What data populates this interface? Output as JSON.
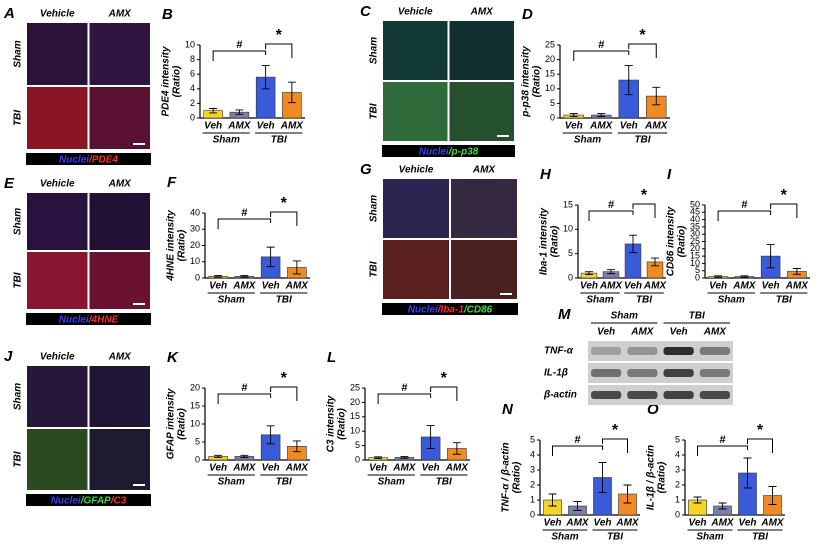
{
  "chart_data": [
    {
      "type": "bar",
      "panel": "B",
      "ylabel": "PDE4 intensity",
      "ylabel_unit": "(Ratio)",
      "categories": [
        "Veh",
        "AMX",
        "Veh",
        "AMX"
      ],
      "groups": [
        "Sham",
        "TBI"
      ],
      "values": [
        1,
        0.8,
        5.6,
        3.5
      ],
      "errors": [
        0.3,
        0.3,
        1.6,
        1.4
      ],
      "colors": [
        "#f5d327",
        "#7b7fa8",
        "#3a5bd9",
        "#f08a24"
      ],
      "ylim": [
        0,
        10
      ],
      "yticks": [
        0,
        2,
        4,
        6,
        8,
        10
      ],
      "annotations": [
        "#",
        "*"
      ]
    },
    {
      "type": "bar",
      "panel": "D",
      "ylabel": "p-p38 intensity",
      "ylabel_unit": "(Ratio)",
      "categories": [
        "Veh",
        "AMX",
        "Veh",
        "AMX"
      ],
      "groups": [
        "Sham",
        "TBI"
      ],
      "values": [
        1,
        1,
        13,
        7.5
      ],
      "errors": [
        0.5,
        0.5,
        5,
        3
      ],
      "colors": [
        "#f5d327",
        "#7b7fa8",
        "#3a5bd9",
        "#f08a24"
      ],
      "ylim": [
        0,
        25
      ],
      "yticks": [
        0,
        5,
        10,
        15,
        20,
        25
      ],
      "annotations": [
        "#",
        "*"
      ]
    },
    {
      "type": "bar",
      "panel": "F",
      "ylabel": "4HNE intensity",
      "ylabel_unit": "(Ratio)",
      "categories": [
        "Veh",
        "AMX",
        "Veh",
        "AMX"
      ],
      "groups": [
        "Sham",
        "TBI"
      ],
      "values": [
        1,
        1,
        13,
        6.5
      ],
      "errors": [
        0.5,
        0.5,
        6,
        4
      ],
      "colors": [
        "#f5d327",
        "#7b7fa8",
        "#3a5bd9",
        "#f08a24"
      ],
      "ylim": [
        0,
        40
      ],
      "yticks": [
        0,
        10,
        20,
        30,
        40
      ],
      "annotations": [
        "#",
        "*"
      ]
    },
    {
      "type": "bar",
      "panel": "H",
      "ylabel": "Iba-1 intensity",
      "ylabel_unit": "(Ratio)",
      "categories": [
        "Veh",
        "AMX",
        "Veh",
        "AMX"
      ],
      "groups": [
        "Sham",
        "TBI"
      ],
      "values": [
        1,
        1.3,
        7,
        3.3
      ],
      "errors": [
        0.3,
        0.4,
        1.8,
        0.8
      ],
      "colors": [
        "#f5d327",
        "#7b7fa8",
        "#3a5bd9",
        "#f08a24"
      ],
      "ylim": [
        0,
        15
      ],
      "yticks": [
        0,
        5,
        10,
        15
      ],
      "annotations": [
        "#",
        "*"
      ]
    },
    {
      "type": "bar",
      "panel": "I",
      "ylabel": "CD86 intensity",
      "ylabel_unit": "(Ratio)",
      "categories": [
        "Veh",
        "AMX",
        "Veh",
        "AMX"
      ],
      "groups": [
        "Sham",
        "TBI"
      ],
      "values": [
        1,
        1,
        15,
        4.5
      ],
      "errors": [
        0.5,
        0.5,
        8,
        2
      ],
      "colors": [
        "#f5d327",
        "#7b7fa8",
        "#3a5bd9",
        "#f08a24"
      ],
      "ylim": [
        0,
        50
      ],
      "yticks": [
        0,
        5,
        10,
        15,
        20,
        25,
        30,
        35,
        40,
        45,
        50
      ],
      "annotations": [
        "#",
        "*"
      ]
    },
    {
      "type": "bar",
      "panel": "K",
      "ylabel": "GFAP intensity",
      "ylabel_unit": "(Ratio)",
      "categories": [
        "Veh",
        "AMX",
        "Veh",
        "AMX"
      ],
      "groups": [
        "Sham",
        "TBI"
      ],
      "values": [
        1,
        1,
        7,
        3.8
      ],
      "errors": [
        0.3,
        0.3,
        2.5,
        1.5
      ],
      "colors": [
        "#f5d327",
        "#7b7fa8",
        "#3a5bd9",
        "#f08a24"
      ],
      "ylim": [
        0,
        20
      ],
      "yticks": [
        0,
        5,
        10,
        15,
        20
      ],
      "annotations": [
        "#",
        "*"
      ]
    },
    {
      "type": "bar",
      "panel": "L",
      "ylabel": "C3 intensity",
      "ylabel_unit": "(Ratio)",
      "categories": [
        "Veh",
        "AMX",
        "Veh",
        "AMX"
      ],
      "groups": [
        "Sham",
        "TBI"
      ],
      "values": [
        0.8,
        0.9,
        8,
        4
      ],
      "errors": [
        0.3,
        0.3,
        4,
        2
      ],
      "colors": [
        "#f5d327",
        "#7b7fa8",
        "#3a5bd9",
        "#f08a24"
      ],
      "ylim": [
        0,
        25
      ],
      "yticks": [
        0,
        5,
        10,
        15,
        20,
        25
      ],
      "annotations": [
        "#",
        "*"
      ]
    },
    {
      "type": "bar",
      "panel": "N",
      "ylabel": "TNF-α / β-actin",
      "ylabel_unit": "(Ratio)",
      "categories": [
        "Veh",
        "AMX",
        "Veh",
        "AMX"
      ],
      "groups": [
        "Sham",
        "TBI"
      ],
      "values": [
        1,
        0.6,
        2.5,
        1.4
      ],
      "errors": [
        0.4,
        0.3,
        1,
        0.6
      ],
      "colors": [
        "#f5d327",
        "#7b7fa8",
        "#3a5bd9",
        "#f08a24"
      ],
      "ylim": [
        0,
        5
      ],
      "yticks": [
        0,
        1,
        2,
        3,
        4,
        5
      ],
      "annotations": [
        "#",
        "*"
      ]
    },
    {
      "type": "bar",
      "panel": "O",
      "ylabel": "IL-1β / β-actin",
      "ylabel_unit": "(Ratio)",
      "categories": [
        "Veh",
        "AMX",
        "Veh",
        "AMX"
      ],
      "groups": [
        "Sham",
        "TBI"
      ],
      "values": [
        1,
        0.6,
        2.8,
        1.3
      ],
      "errors": [
        0.2,
        0.2,
        1,
        0.6
      ],
      "colors": [
        "#f5d327",
        "#7b7fa8",
        "#3a5bd9",
        "#f08a24"
      ],
      "ylim": [
        0,
        5
      ],
      "yticks": [
        0,
        1,
        2,
        3,
        4,
        5
      ],
      "annotations": [
        "#",
        "*"
      ]
    }
  ],
  "image_panels": [
    {
      "panel": "A",
      "columns": [
        "Vehicle",
        "AMX"
      ],
      "rows": [
        "Sham",
        "TBI"
      ],
      "legend": [
        {
          "text": "Nuclei",
          "color": "#3b3bff"
        },
        {
          "text": "/PDE4",
          "color": "#ff2a2a"
        }
      ]
    },
    {
      "panel": "C",
      "columns": [
        "Vehicle",
        "AMX"
      ],
      "rows": [
        "Sham",
        "TBI"
      ],
      "legend": [
        {
          "text": "Nuclei",
          "color": "#3b3bff"
        },
        {
          "text": "/p-p38",
          "color": "#3cdc3c"
        }
      ]
    },
    {
      "panel": "E",
      "columns": [
        "Vehicle",
        "AMX"
      ],
      "rows": [
        "Sham",
        "TBI"
      ],
      "legend": [
        {
          "text": "Nuclei",
          "color": "#3b3bff"
        },
        {
          "text": "/4HNE",
          "color": "#ff2a2a"
        }
      ]
    },
    {
      "panel": "G",
      "columns": [
        "Vehicle",
        "AMX"
      ],
      "rows": [
        "Sham",
        "TBI"
      ],
      "legend": [
        {
          "text": "Nuclei",
          "color": "#3b3bff"
        },
        {
          "text": "/Iba-1",
          "color": "#ff2a2a"
        },
        {
          "text": "/CD86",
          "color": "#3cdc3c"
        }
      ]
    },
    {
      "panel": "J",
      "columns": [
        "Vehicle",
        "AMX"
      ],
      "rows": [
        "Sham",
        "TBI"
      ],
      "legend": [
        {
          "text": "Nuclei",
          "color": "#3b3bff"
        },
        {
          "text": "/GFAP",
          "color": "#3cdc3c"
        },
        {
          "text": "/C3",
          "color": "#ff2a2a"
        }
      ]
    }
  ],
  "blot": {
    "panel": "M",
    "groups": [
      "Sham",
      "TBI"
    ],
    "lanes": [
      "Veh",
      "AMX",
      "Veh",
      "AMX"
    ],
    "rows": [
      "TNF-α",
      "IL-1β",
      "β-actin"
    ]
  }
}
